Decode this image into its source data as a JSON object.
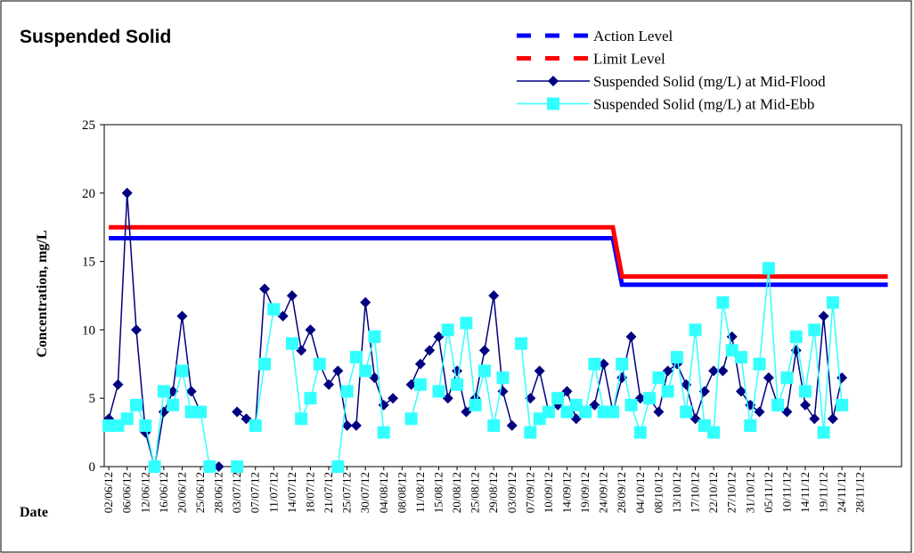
{
  "chart_data": {
    "type": "line",
    "title": "Suspended Solid",
    "y_label": "Concentration, mg/L",
    "x_label": "Date",
    "categories": [
      "02/06/12",
      null,
      "06/06/12",
      null,
      "12/06/12",
      null,
      "16/06/12",
      null,
      "20/06/12",
      null,
      "25/06/12",
      null,
      "28/06/12",
      null,
      "03/07/12",
      null,
      "07/07/12",
      null,
      "11/07/12",
      null,
      "14/07/12",
      null,
      "18/07/12",
      null,
      "21/07/12",
      null,
      "25/07/12",
      null,
      "30/07/12",
      null,
      "04/08/12",
      null,
      "08/08/12",
      null,
      "11/08/12",
      null,
      "15/08/12",
      null,
      "20/08/12",
      null,
      "25/08/12",
      null,
      "29/08/12",
      null,
      "03/09/12",
      null,
      "07/09/12",
      null,
      "10/09/12",
      null,
      "14/09/12",
      null,
      "19/09/12",
      null,
      "24/09/12",
      null,
      "28/09/12",
      null,
      "04/10/12",
      null,
      "08/10/12",
      null,
      "13/10/12",
      null,
      "17/10/12",
      null,
      "22/10/12",
      null,
      "27/10/12",
      null,
      "31/10/12",
      null,
      "05/11/12",
      null,
      "10/11/12",
      null,
      "14/11/12",
      null,
      "19/11/12",
      null,
      "24/11/12",
      null,
      "28/11/12",
      null,
      null,
      null,
      null
    ],
    "ylim": [
      0,
      25
    ],
    "yticks": [
      0,
      5,
      10,
      15,
      20,
      25
    ],
    "series": [
      {
        "name": "Action Level",
        "color": "#0000ff",
        "values": [
          16.7,
          16.7,
          16.7,
          16.7,
          16.7,
          16.7,
          16.7,
          16.7,
          16.7,
          16.7,
          16.7,
          16.7,
          16.7,
          16.7,
          16.7,
          16.7,
          16.7,
          16.7,
          16.7,
          16.7,
          16.7,
          16.7,
          16.7,
          16.7,
          16.7,
          16.7,
          16.7,
          16.7,
          16.7,
          16.7,
          16.7,
          16.7,
          16.7,
          16.7,
          16.7,
          16.7,
          16.7,
          16.7,
          16.7,
          16.7,
          16.7,
          16.7,
          16.7,
          16.7,
          16.7,
          16.7,
          16.7,
          16.7,
          16.7,
          16.7,
          16.7,
          16.7,
          16.7,
          16.7,
          16.7,
          16.7,
          13.3,
          13.3,
          13.3,
          13.3,
          13.3,
          13.3,
          13.3,
          13.3,
          13.3,
          13.3,
          13.3,
          13.3,
          13.3,
          13.3,
          13.3,
          13.3,
          13.3,
          13.3,
          13.3,
          13.3,
          13.3,
          13.3,
          13.3,
          13.3,
          13.3,
          13.3,
          13.3,
          13.3,
          13.3,
          13.3,
          null
        ]
      },
      {
        "name": "Limit Level",
        "color": "#ff0000",
        "values": [
          17.5,
          17.5,
          17.5,
          17.5,
          17.5,
          17.5,
          17.5,
          17.5,
          17.5,
          17.5,
          17.5,
          17.5,
          17.5,
          17.5,
          17.5,
          17.5,
          17.5,
          17.5,
          17.5,
          17.5,
          17.5,
          17.5,
          17.5,
          17.5,
          17.5,
          17.5,
          17.5,
          17.5,
          17.5,
          17.5,
          17.5,
          17.5,
          17.5,
          17.5,
          17.5,
          17.5,
          17.5,
          17.5,
          17.5,
          17.5,
          17.5,
          17.5,
          17.5,
          17.5,
          17.5,
          17.5,
          17.5,
          17.5,
          17.5,
          17.5,
          17.5,
          17.5,
          17.5,
          17.5,
          17.5,
          17.5,
          13.9,
          13.9,
          13.9,
          13.9,
          13.9,
          13.9,
          13.9,
          13.9,
          13.9,
          13.9,
          13.9,
          13.9,
          13.9,
          13.9,
          13.9,
          13.9,
          13.9,
          13.9,
          13.9,
          13.9,
          13.9,
          13.9,
          13.9,
          13.9,
          13.9,
          13.9,
          13.9,
          13.9,
          13.9,
          13.9,
          null
        ]
      },
      {
        "name": "Suspended Solid (mg/L) at Mid-Flood",
        "color": "#000080",
        "marker": "diamond",
        "values": [
          3.5,
          6,
          20,
          10,
          2.5,
          0,
          4,
          5.5,
          11,
          5.5,
          4,
          null,
          0,
          null,
          4,
          3.5,
          3,
          13,
          11.5,
          11,
          12.5,
          8.5,
          10,
          7.5,
          6,
          7,
          3,
          3,
          12,
          6.5,
          4.5,
          5,
          null,
          6,
          7.5,
          8.5,
          9.5,
          5,
          7,
          4,
          5,
          8.5,
          12.5,
          5.5,
          3,
          null,
          5,
          7,
          4,
          4.5,
          5.5,
          3.5,
          4,
          4.5,
          7.5,
          4,
          6.5,
          9.5,
          5,
          5,
          4,
          7,
          7.5,
          6,
          3.5,
          5.5,
          7,
          7,
          9.5,
          5.5,
          4.5,
          4,
          6.5,
          4.5,
          4,
          8.5,
          4.5,
          3.5,
          11,
          3.5,
          6.5,
          null,
          null,
          null,
          null,
          null,
          null
        ]
      },
      {
        "name": "Suspended Solid (mg/L) at Mid-Ebb",
        "color": "#33ffff",
        "marker": "square",
        "values": [
          3,
          3,
          3.5,
          4.5,
          3,
          0,
          5.5,
          4.5,
          7,
          4,
          4,
          0,
          null,
          null,
          0,
          null,
          3,
          7.5,
          11.5,
          null,
          9,
          3.5,
          5,
          7.5,
          null,
          0,
          5.5,
          8,
          7,
          9.5,
          2.5,
          null,
          null,
          3.5,
          6,
          null,
          5.5,
          10,
          6,
          10.5,
          4.5,
          7,
          3,
          6.5,
          null,
          9,
          2.5,
          3.5,
          4,
          5,
          4,
          4.5,
          4,
          7.5,
          4,
          4,
          7.5,
          4.5,
          2.5,
          5,
          6.5,
          5.5,
          8,
          4,
          10,
          3,
          2.5,
          12,
          8.5,
          8,
          3,
          7.5,
          14.5,
          4.5,
          6.5,
          9.5,
          5.5,
          10,
          2.5,
          12,
          4.5,
          null,
          null,
          null,
          null,
          null,
          null
        ]
      }
    ]
  }
}
